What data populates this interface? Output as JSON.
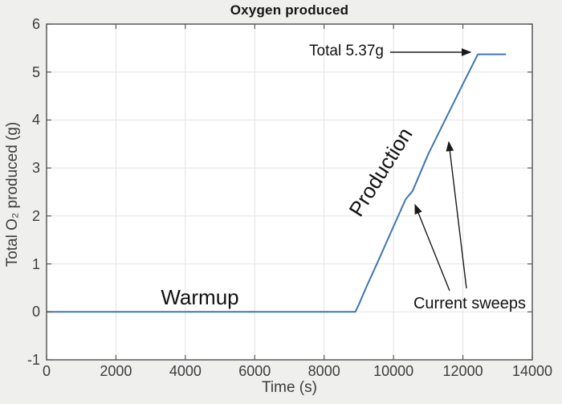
{
  "chart_data": {
    "type": "line",
    "title": "Oxygen produced",
    "xlabel": "Time (s)",
    "ylabel": "Total O₂ produced (g)",
    "xlim": [
      0,
      14000
    ],
    "ylim": [
      -1,
      6
    ],
    "x_ticks": [
      0,
      2000,
      4000,
      6000,
      8000,
      10000,
      12000,
      14000
    ],
    "y_ticks": [
      -1,
      0,
      1,
      2,
      3,
      4,
      5,
      6
    ],
    "grid": true,
    "legend": "none",
    "line_color": "#3e76b0",
    "grid_color": "#e2e2e2",
    "axis_color": "#5a5a5a",
    "series": [
      {
        "name": "total-oxygen-produced",
        "points": [
          [
            0,
            0
          ],
          [
            2000,
            0
          ],
          [
            4000,
            0
          ],
          [
            6000,
            0
          ],
          [
            8000,
            0
          ],
          [
            8900,
            0
          ],
          [
            9000,
            0.15
          ],
          [
            9200,
            0.49
          ],
          [
            9600,
            1.13
          ],
          [
            10000,
            1.78
          ],
          [
            10350,
            2.35
          ],
          [
            10550,
            2.52
          ],
          [
            11000,
            3.29
          ],
          [
            11500,
            4.02
          ],
          [
            12000,
            4.75
          ],
          [
            12430,
            5.37
          ],
          [
            13240,
            5.37
          ]
        ]
      }
    ],
    "annotations": {
      "total": "Total 5.37g",
      "warmup": "Warmup",
      "production": "Production",
      "current_sweeps": "Current sweeps"
    }
  }
}
